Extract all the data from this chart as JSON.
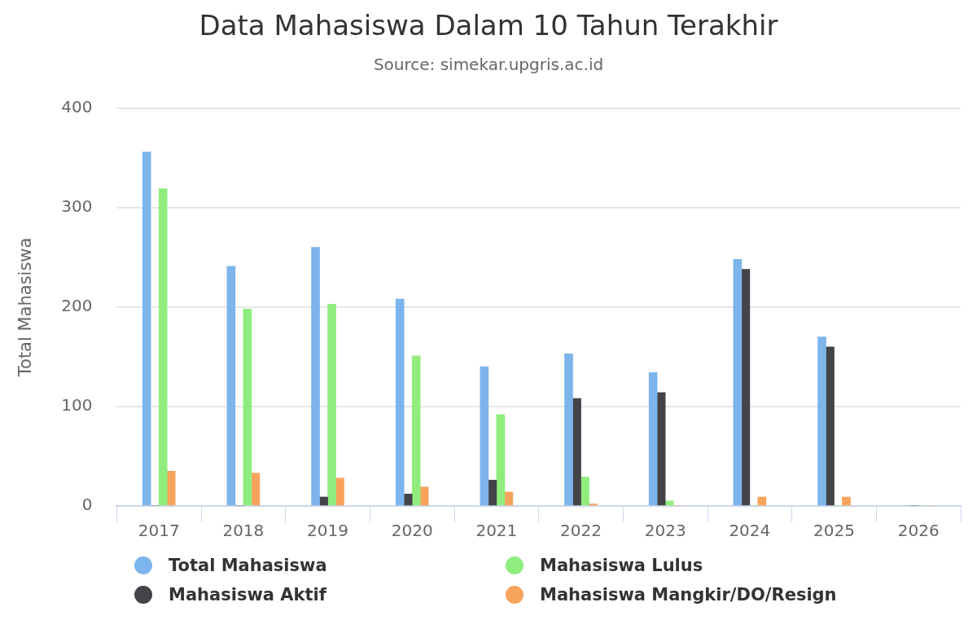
{
  "chart_data": {
    "type": "bar",
    "title": "Data Mahasiswa Dalam 10 Tahun Terakhir",
    "subtitle": "Source: simekar.upgris.ac.id",
    "ylabel": "Total Mahasiswa",
    "categories": [
      "2017",
      "2018",
      "2019",
      "2020",
      "2021",
      "2022",
      "2023",
      "2024",
      "2025",
      "2026"
    ],
    "series": [
      {
        "name": "Total Mahasiswa",
        "color": "#7cb5ec",
        "values": [
          356,
          241,
          260,
          208,
          140,
          153,
          134,
          248,
          170,
          0
        ]
      },
      {
        "name": "Mahasiswa Aktif",
        "color": "#434348",
        "values": [
          0,
          0,
          9,
          12,
          26,
          108,
          114,
          238,
          160,
          0
        ]
      },
      {
        "name": "Mahasiswa Lulus",
        "color": "#90ed7d",
        "values": [
          319,
          198,
          203,
          151,
          92,
          29,
          5,
          0,
          0,
          0
        ]
      },
      {
        "name": "Mahasiswa Mangkir/DO/Resign",
        "color": "#f7a35c",
        "values": [
          35,
          33,
          28,
          19,
          14,
          2,
          0,
          9,
          9,
          0
        ]
      }
    ],
    "ylim": [
      0,
      400
    ],
    "yticks": [
      0,
      100,
      200,
      300,
      400
    ],
    "grid": "y",
    "legend": "bottom"
  }
}
